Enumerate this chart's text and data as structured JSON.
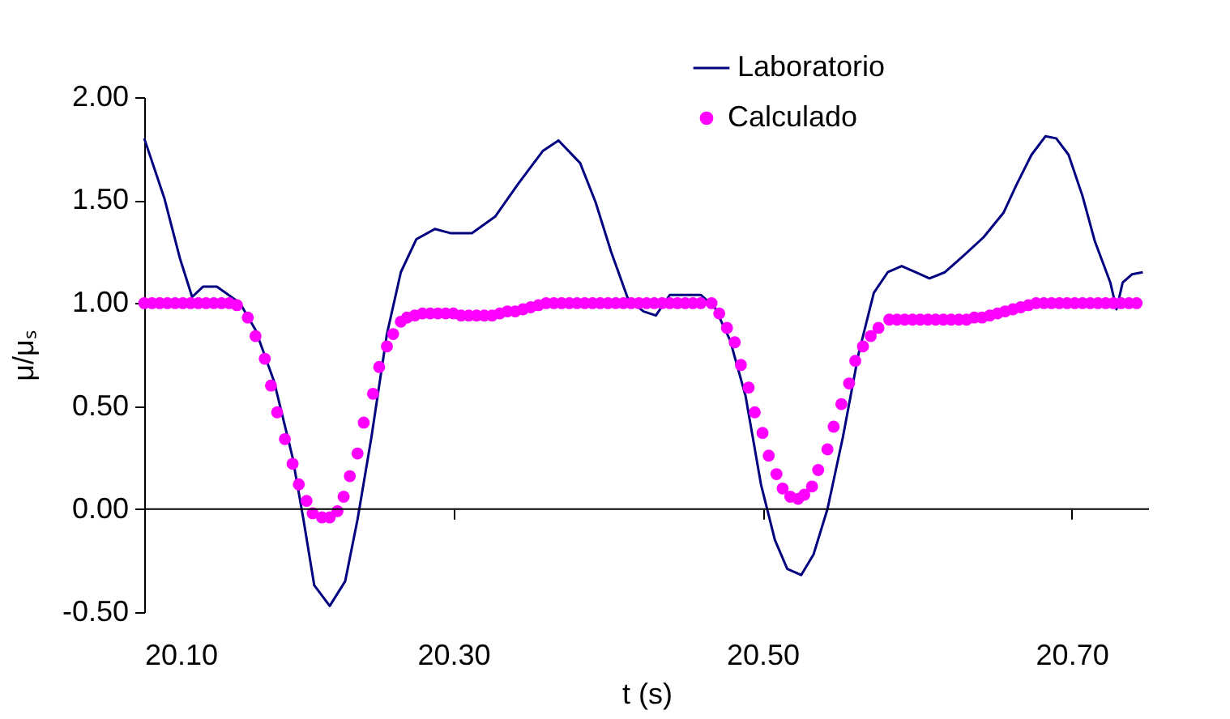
{
  "chart_data": {
    "type": "line",
    "xlabel": "t (s)",
    "ylabel": "μ/μₛ",
    "xlim": [
      20.1,
      20.75
    ],
    "ylim": [
      -0.5,
      2.0
    ],
    "xticks": [
      {
        "value": 20.1,
        "label": "20.10"
      },
      {
        "value": 20.3,
        "label": "20.30"
      },
      {
        "value": 20.5,
        "label": "20.50"
      },
      {
        "value": 20.7,
        "label": "20.70"
      }
    ],
    "yticks": [
      {
        "value": -0.5,
        "label": "-0.50"
      },
      {
        "value": 0,
        "label": "0.00"
      },
      {
        "value": 0.5,
        "label": "0.50"
      },
      {
        "value": 1.0,
        "label": "1.00"
      },
      {
        "value": 1.5,
        "label": "1.50"
      },
      {
        "value": 2.0,
        "label": "2.00"
      }
    ],
    "grid": false,
    "legend": "top right",
    "ref_lines": [
      {
        "axis": "y",
        "value": 0,
        "color": "#000000",
        "line_style": "solid"
      }
    ],
    "series": [
      {
        "name": "Laboratorio",
        "color": "#000080",
        "marker": "none",
        "line_style": "solid",
        "x": [
          20.1,
          20.113,
          20.123,
          20.131,
          20.138,
          20.147,
          20.162,
          20.172,
          20.184,
          20.196,
          20.203,
          20.21,
          20.22,
          20.23,
          20.238,
          20.247,
          20.257,
          20.266,
          20.276,
          20.288,
          20.298,
          20.312,
          20.327,
          20.342,
          20.358,
          20.368,
          20.382,
          20.392,
          20.402,
          20.413,
          20.423,
          20.431,
          20.44,
          20.46,
          20.469,
          20.479,
          20.489,
          20.499,
          20.508,
          20.516,
          20.525,
          20.533,
          20.542,
          20.552,
          20.562,
          20.572,
          20.581,
          20.59,
          20.599,
          20.608,
          20.618,
          20.63,
          20.643,
          20.656,
          20.664,
          20.674,
          20.683,
          20.69,
          20.698,
          20.707,
          20.715,
          20.725,
          20.729,
          20.733,
          20.739,
          20.746
        ],
        "values": [
          1.8,
          1.51,
          1.22,
          1.03,
          1.08,
          1.08,
          1.0,
          0.87,
          0.62,
          0.25,
          -0.05,
          -0.37,
          -0.47,
          -0.35,
          -0.05,
          0.35,
          0.85,
          1.15,
          1.31,
          1.36,
          1.34,
          1.34,
          1.42,
          1.58,
          1.74,
          1.79,
          1.68,
          1.49,
          1.25,
          1.02,
          0.96,
          0.94,
          1.04,
          1.04,
          0.98,
          0.82,
          0.55,
          0.12,
          -0.15,
          -0.29,
          -0.32,
          -0.22,
          0.0,
          0.35,
          0.75,
          1.05,
          1.15,
          1.18,
          1.15,
          1.12,
          1.15,
          1.23,
          1.32,
          1.44,
          1.57,
          1.72,
          1.81,
          1.8,
          1.72,
          1.52,
          1.3,
          1.1,
          0.97,
          1.1,
          1.14,
          1.15
        ]
      },
      {
        "name": "Calculado",
        "type": "scatter",
        "color": "#ff00ff",
        "marker": "circle",
        "x": [
          20.1,
          20.105,
          20.11,
          20.115,
          20.12,
          20.125,
          20.13,
          20.135,
          20.14,
          20.145,
          20.15,
          20.155,
          20.16,
          20.167,
          20.172,
          20.178,
          20.182,
          20.186,
          20.191,
          20.196,
          20.2,
          20.205,
          20.209,
          20.215,
          20.22,
          20.225,
          20.229,
          20.233,
          20.238,
          20.242,
          20.248,
          20.252,
          20.257,
          20.261,
          20.266,
          20.27,
          20.275,
          20.28,
          20.285,
          20.29,
          20.295,
          20.3,
          20.305,
          20.31,
          20.315,
          20.32,
          20.325,
          20.33,
          20.335,
          20.34,
          20.345,
          20.35,
          20.355,
          20.36,
          20.365,
          20.37,
          20.375,
          20.38,
          20.385,
          20.39,
          20.395,
          20.4,
          20.405,
          20.41,
          20.415,
          20.42,
          20.425,
          20.43,
          20.435,
          20.44,
          20.445,
          20.45,
          20.455,
          20.46,
          20.467,
          20.472,
          20.477,
          20.482,
          20.486,
          20.491,
          20.495,
          20.5,
          20.504,
          20.509,
          20.513,
          20.518,
          20.523,
          20.527,
          20.532,
          20.536,
          20.542,
          20.546,
          20.551,
          20.556,
          20.56,
          20.565,
          20.57,
          20.575,
          20.582,
          20.587,
          20.592,
          20.597,
          20.602,
          20.607,
          20.612,
          20.617,
          20.622,
          20.627,
          20.632,
          20.637,
          20.642,
          20.647,
          20.652,
          20.657,
          20.662,
          20.667,
          20.672,
          20.677,
          20.682,
          20.687,
          20.692,
          20.697,
          20.702,
          20.707,
          20.712,
          20.717,
          20.722,
          20.727,
          20.732,
          20.737,
          20.742
        ],
        "values": [
          1.0,
          1.0,
          1.0,
          1.0,
          1.0,
          1.0,
          1.0,
          1.0,
          1.0,
          1.0,
          1.0,
          1.0,
          0.99,
          0.93,
          0.84,
          0.73,
          0.6,
          0.47,
          0.34,
          0.22,
          0.12,
          0.04,
          -0.02,
          -0.04,
          -0.04,
          -0.01,
          0.06,
          0.16,
          0.27,
          0.42,
          0.56,
          0.69,
          0.79,
          0.85,
          0.91,
          0.93,
          0.94,
          0.95,
          0.95,
          0.95,
          0.95,
          0.95,
          0.94,
          0.94,
          0.94,
          0.94,
          0.94,
          0.95,
          0.96,
          0.96,
          0.97,
          0.98,
          0.99,
          1.0,
          1.0,
          1.0,
          1.0,
          1.0,
          1.0,
          1.0,
          1.0,
          1.0,
          1.0,
          1.0,
          1.0,
          1.0,
          1.0,
          1.0,
          1.0,
          1.0,
          1.0,
          1.0,
          1.0,
          1.0,
          1.0,
          0.95,
          0.88,
          0.81,
          0.7,
          0.59,
          0.47,
          0.37,
          0.26,
          0.17,
          0.1,
          0.06,
          0.05,
          0.07,
          0.11,
          0.19,
          0.29,
          0.4,
          0.51,
          0.61,
          0.72,
          0.79,
          0.84,
          0.88,
          0.92,
          0.92,
          0.92,
          0.92,
          0.92,
          0.92,
          0.92,
          0.92,
          0.92,
          0.92,
          0.92,
          0.93,
          0.93,
          0.94,
          0.95,
          0.96,
          0.97,
          0.98,
          0.99,
          1.0,
          1.0,
          1.0,
          1.0,
          1.0,
          1.0,
          1.0,
          1.0,
          1.0,
          1.0,
          1.0,
          1.0,
          1.0,
          1.0
        ]
      }
    ]
  }
}
